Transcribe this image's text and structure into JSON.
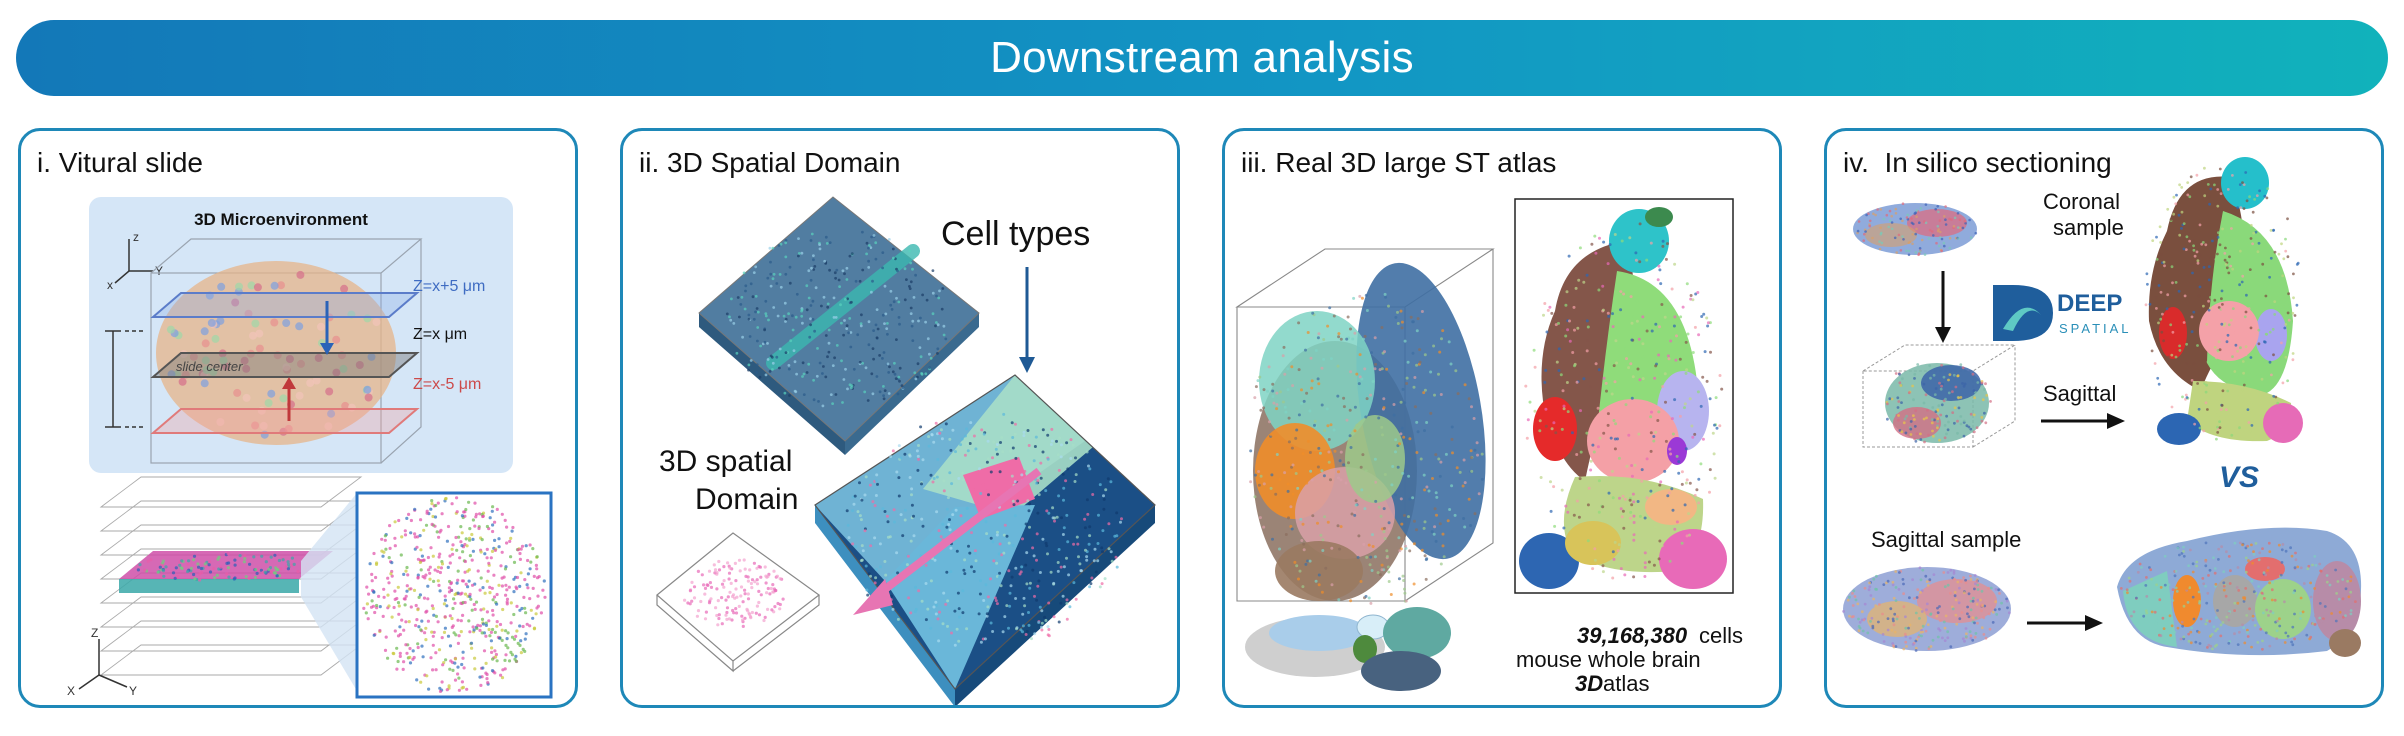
{
  "header": {
    "title": "Downstream analysis"
  },
  "colors": {
    "banner_start": "#1378b8",
    "banner_end": "#11b2bb",
    "panel_border": "#1e88b8"
  },
  "panels": [
    {
      "title": "i. Vitural slide",
      "box_title": "3D Microenvironment",
      "plane_upper": "Z=x+5 μm",
      "plane_center": "Z=x μm",
      "plane_lower": "Z=x-5 μm",
      "slide_center": "slide center",
      "axis_z": "z",
      "axis_x": "x",
      "axis_y": "Y",
      "axis_z2": "Z",
      "axis_x2": "X",
      "axis_y2": "Y"
    },
    {
      "title": "ii. 3D Spatial Domain",
      "label_cell_types": "Cell types",
      "label_domain_line1": "3D spatial",
      "label_domain_line2": "Domain"
    },
    {
      "title": "iii. Real 3D large ST atlas",
      "cell_count": "39,168,380",
      "cells_word": " cells",
      "line2": "mouse whole brain",
      "bold_3d": "3D",
      "atlas_word": " atlas"
    },
    {
      "title": "iv.  In silico sectioning",
      "coronal_line1": "Coronal",
      "coronal_line2": "sample",
      "logo_word1": "DEEP",
      "logo_word2": "SPATIAL",
      "sagittal": "Sagittal",
      "vs": "VS",
      "sagittal_sample": "Sagittal sample"
    }
  ]
}
